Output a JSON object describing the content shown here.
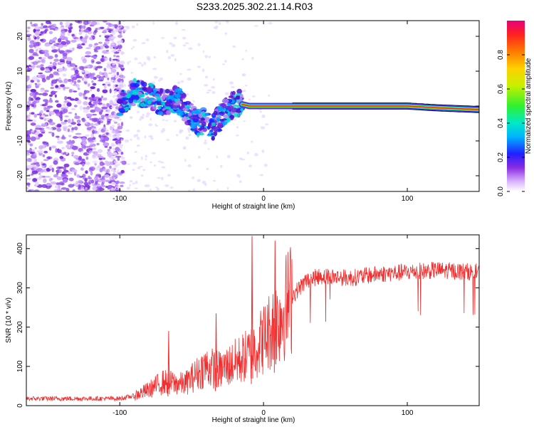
{
  "title": "S233.2025.302.21.14.R03",
  "colors": {
    "snr_line": "#f03030",
    "axis": "#000000"
  },
  "chart_data": [
    {
      "type": "heatmap",
      "name": "spectrogram",
      "xlabel": "Height of straight line (km)",
      "ylabel": "Frequency (Hz)",
      "xlim": [
        -165,
        150
      ],
      "ylim": [
        -24.5,
        24.5
      ],
      "x_ticks": [
        -100,
        0,
        100
      ],
      "x_tick_labels": [
        "-100",
        "0",
        "100"
      ],
      "y_ticks": [
        -20,
        -10,
        0,
        10,
        20
      ],
      "y_tick_labels": [
        "-20",
        "-10",
        "0",
        "10",
        "20"
      ],
      "colorbar": {
        "label": "Normalized spectral amplitude",
        "range": [
          0,
          1
        ],
        "ticks": [
          0.0,
          0.2,
          0.4,
          0.6,
          0.8
        ],
        "tick_labels": [
          "0.0",
          "0.2",
          "0.4",
          "0.6",
          "0.8"
        ]
      },
      "ridge": [
        {
          "x": -100,
          "freq": 0.5
        },
        {
          "x": -90,
          "freq": 4
        },
        {
          "x": -80,
          "freq": 3
        },
        {
          "x": -70,
          "freq": 1
        },
        {
          "x": -60,
          "freq": 2
        },
        {
          "x": -50,
          "freq": -3
        },
        {
          "x": -45,
          "freq": -5
        },
        {
          "x": -40,
          "freq": -4
        },
        {
          "x": -35,
          "freq": -6
        },
        {
          "x": -30,
          "freq": -3
        },
        {
          "x": -25,
          "freq": -1
        },
        {
          "x": -20,
          "freq": 1
        },
        {
          "x": -10,
          "freq": 0
        },
        {
          "x": 0,
          "freq": 0
        },
        {
          "x": 20,
          "freq": 0
        },
        {
          "x": 60,
          "freq": 0
        },
        {
          "x": 100,
          "freq": 0
        },
        {
          "x": 120,
          "freq": -0.5
        },
        {
          "x": 150,
          "freq": -1
        }
      ],
      "noise_region": {
        "x_from": -165,
        "x_to": -100
      }
    },
    {
      "type": "line",
      "name": "snr",
      "xlabel": "Height of straight line (km)",
      "ylabel": "SNR (10 * v/v)",
      "xlim": [
        -165,
        150
      ],
      "ylim": [
        0,
        435
      ],
      "x_ticks": [
        -100,
        0,
        100
      ],
      "x_tick_labels": [
        "-100",
        "0",
        "100"
      ],
      "y_ticks": [
        0,
        100,
        200,
        300,
        400
      ],
      "y_tick_labels": [
        "0",
        "100",
        "200",
        "300",
        "400"
      ],
      "trend": [
        {
          "x": -165,
          "y": 18
        },
        {
          "x": -100,
          "y": 18
        },
        {
          "x": -90,
          "y": 25
        },
        {
          "x": -80,
          "y": 40
        },
        {
          "x": -70,
          "y": 60
        },
        {
          "x": -55,
          "y": 55
        },
        {
          "x": -40,
          "y": 100
        },
        {
          "x": -30,
          "y": 90
        },
        {
          "x": -20,
          "y": 110
        },
        {
          "x": -10,
          "y": 130
        },
        {
          "x": 0,
          "y": 170
        },
        {
          "x": 10,
          "y": 220
        },
        {
          "x": 20,
          "y": 280
        },
        {
          "x": 30,
          "y": 320
        },
        {
          "x": 40,
          "y": 330
        },
        {
          "x": 60,
          "y": 325
        },
        {
          "x": 80,
          "y": 335
        },
        {
          "x": 100,
          "y": 340
        },
        {
          "x": 120,
          "y": 345
        },
        {
          "x": 150,
          "y": 340
        }
      ],
      "spikes": [
        {
          "x": -8,
          "y": 432
        },
        {
          "x": 8,
          "y": 420
        },
        {
          "x": -66,
          "y": 190
        },
        {
          "x": -33,
          "y": 235
        }
      ]
    }
  ]
}
